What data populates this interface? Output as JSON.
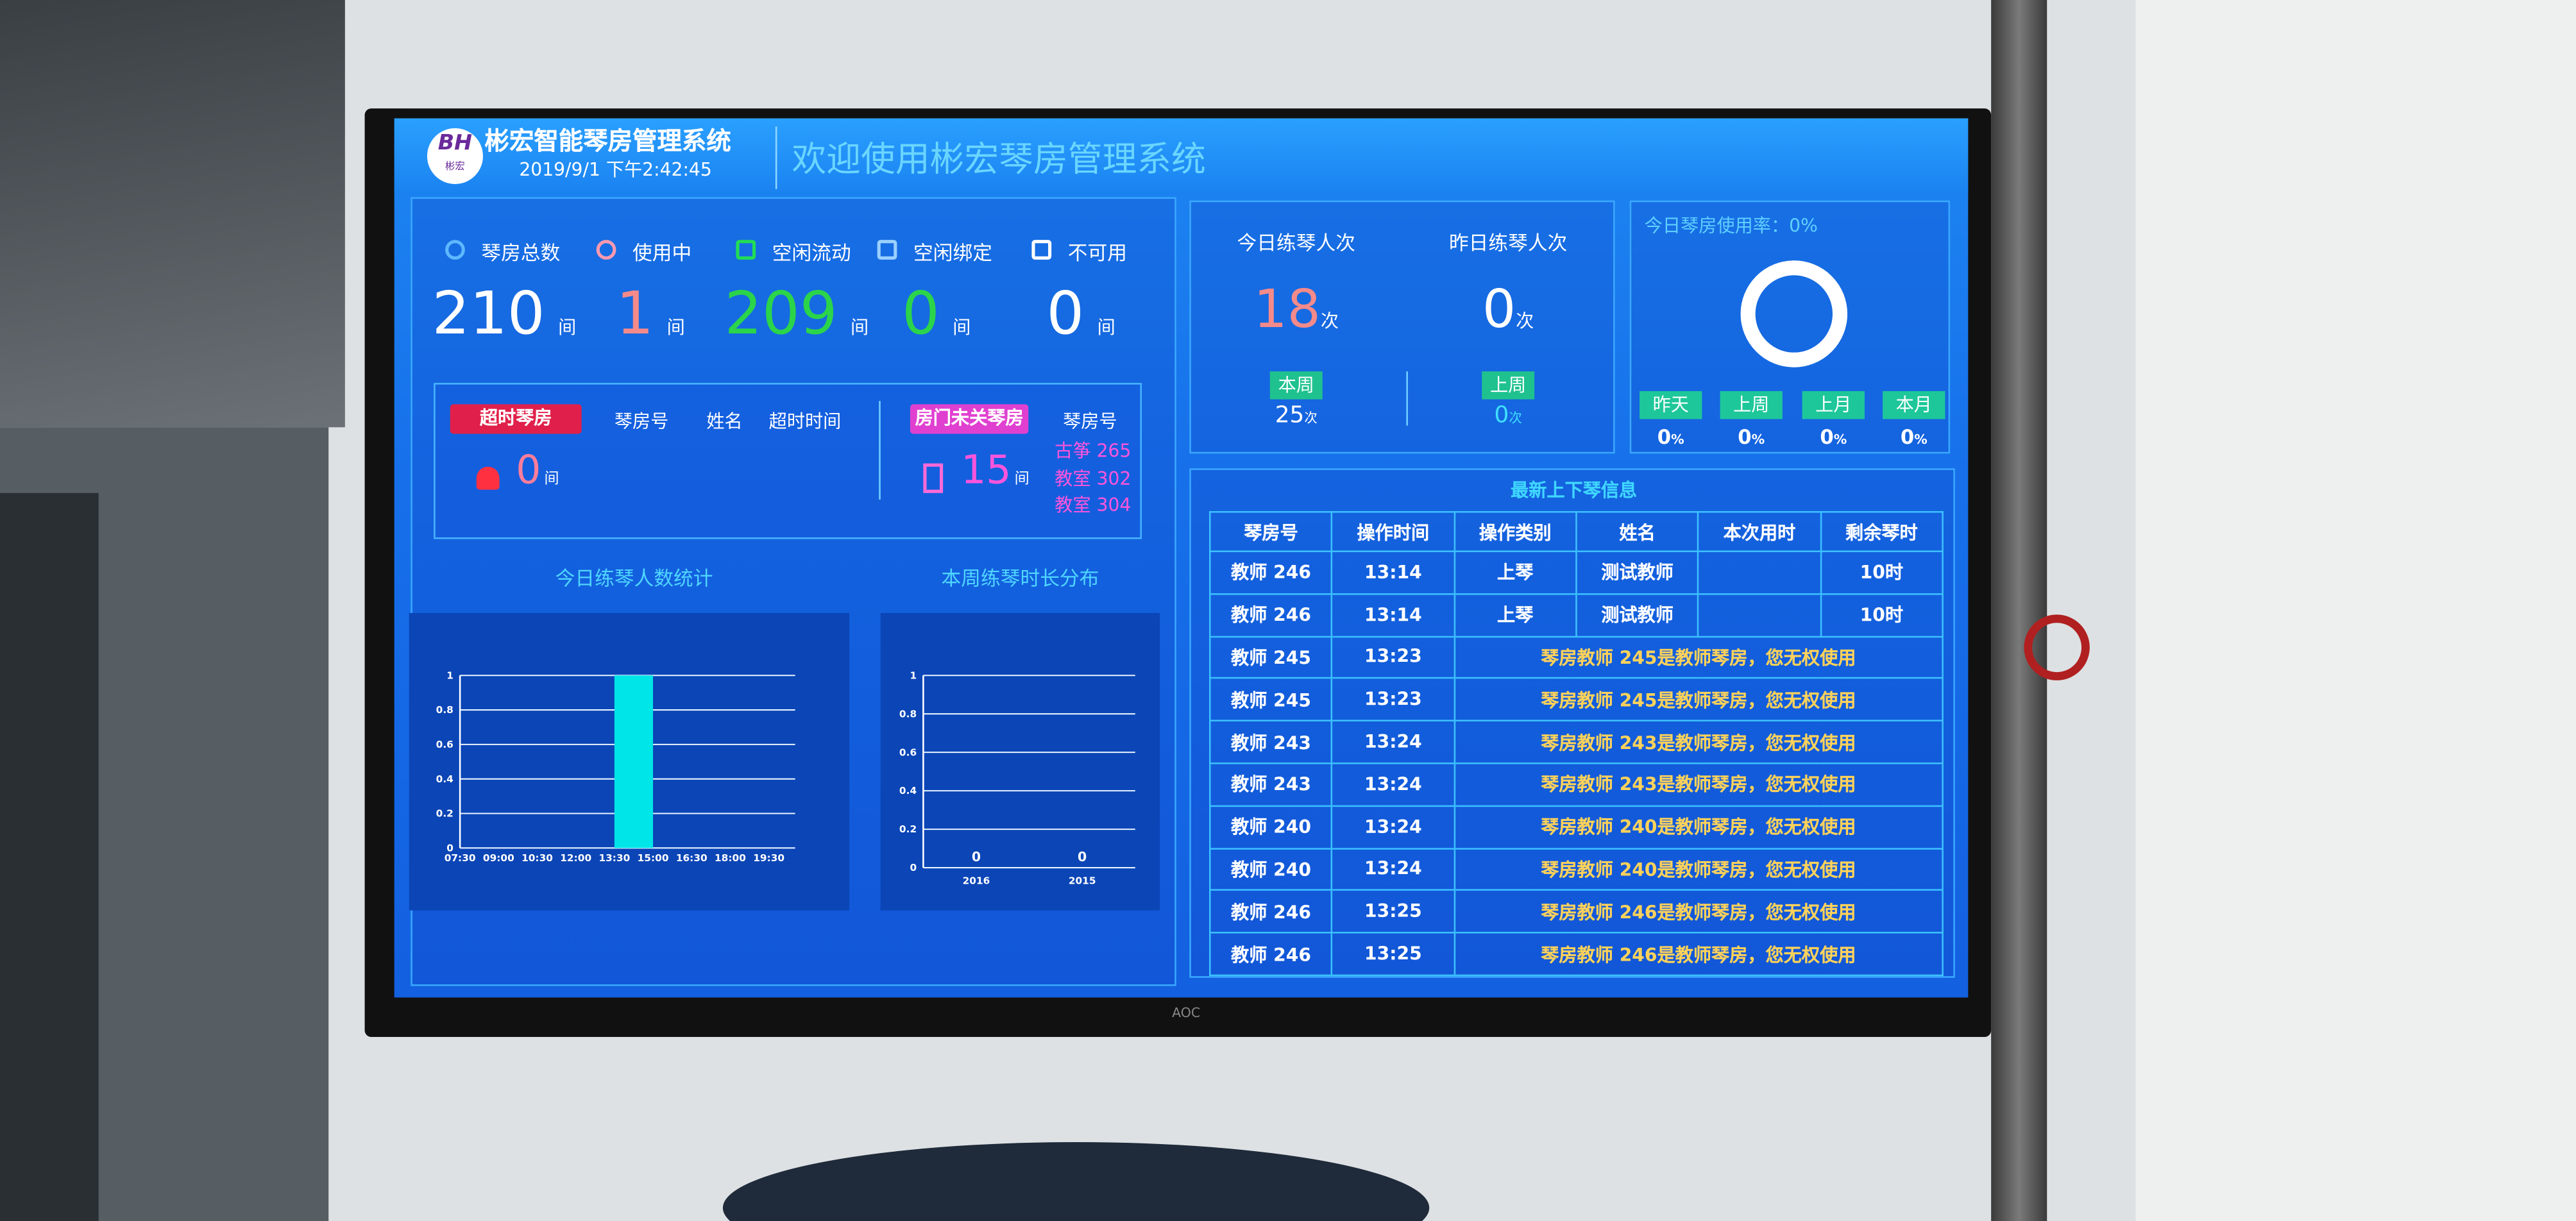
{
  "header": {
    "logo": "BH",
    "logo_caption": "彬宏",
    "system_name": "彬宏智能琴房管理系统",
    "datetime": "2019/9/1 下午2:42:45",
    "welcome": "欢迎使用彬宏琴房管理系统"
  },
  "room_stats": [
    {
      "label": "琴房总数",
      "value": 210,
      "unit": "间"
    },
    {
      "label": "使用中",
      "value": 1,
      "unit": "间"
    },
    {
      "label": "空闲流动",
      "value": 209,
      "unit": "间"
    },
    {
      "label": "空闲绑定",
      "value": 0,
      "unit": "间"
    },
    {
      "label": "不可用",
      "value": 0,
      "unit": "间"
    }
  ],
  "overtime": {
    "title": "超时琴房",
    "columns": [
      "琴房号",
      "姓名",
      "超时时间"
    ],
    "count": 0,
    "unit": "间"
  },
  "door_open": {
    "title": "房门未关琴房",
    "columns": [
      "琴房号"
    ],
    "count": 15,
    "unit": "间",
    "rooms": [
      "古筝 265",
      "教室 302",
      "教室 304"
    ]
  },
  "practice": [
    {
      "title": "今日练琴人次",
      "value": 18,
      "unit": "次",
      "period": "本周",
      "period_value": 25,
      "period_unit": "次"
    },
    {
      "title": "昨日练琴人次",
      "value": 0,
      "unit": "次",
      "period": "上周",
      "period_value": 0,
      "period_unit": "次"
    }
  ],
  "usage": {
    "title": "今日琴房使用率：0%",
    "periods": [
      {
        "label": "昨天",
        "value": 0,
        "unit": "%"
      },
      {
        "label": "上周",
        "value": 0,
        "unit": "%"
      },
      {
        "label": "上月",
        "value": 0,
        "unit": "%"
      },
      {
        "label": "本月",
        "value": 0,
        "unit": "%"
      }
    ]
  },
  "log": {
    "title": "最新上下琴信息",
    "columns": [
      "琴房号",
      "操作时间",
      "操作类别",
      "姓名",
      "本次用时",
      "剩余琴时"
    ],
    "rows": [
      {
        "room": "教师 246",
        "time": "13:14",
        "type": "上琴",
        "name": "测试教师",
        "remaining": "10时"
      },
      {
        "room": "教师 246",
        "time": "13:14",
        "type": "上琴",
        "name": "测试教师",
        "remaining": "10时"
      },
      {
        "room": "教师 245",
        "time": "13:23",
        "message": "琴房教师 245是教师琴房，您无权使用"
      },
      {
        "room": "教师 245",
        "time": "13:23",
        "message": "琴房教师 245是教师琴房，您无权使用"
      },
      {
        "room": "教师 243",
        "time": "13:24",
        "message": "琴房教师 243是教师琴房，您无权使用"
      },
      {
        "room": "教师 243",
        "time": "13:24",
        "message": "琴房教师 243是教师琴房，您无权使用"
      },
      {
        "room": "教师 240",
        "time": "13:24",
        "message": "琴房教师 240是教师琴房，您无权使用"
      },
      {
        "room": "教师 240",
        "time": "13:24",
        "message": "琴房教师 240是教师琴房，您无权使用"
      },
      {
        "room": "教师 246",
        "time": "13:25",
        "message": "琴房教师 246是教师琴房，您无权使用"
      },
      {
        "room": "教师 246",
        "time": "13:25",
        "message": "琴房教师 246是教师琴房，您无权使用"
      }
    ]
  },
  "brand": "AOC",
  "chart_data": [
    {
      "type": "histogram",
      "title": "今日练琴人数统计",
      "bins": [
        "07:30",
        "09:00",
        "10:30",
        "12:00",
        "13:30",
        "15:00",
        "16:30",
        "18:00",
        "19:30"
      ],
      "values": [
        0,
        0,
        0,
        0,
        1,
        0,
        0,
        0
      ],
      "color": "#00e5e8",
      "ylim": [
        0,
        1
      ],
      "yticks": [
        0,
        0.2,
        0.4,
        0.6,
        0.8,
        1
      ]
    },
    {
      "type": "bar",
      "title": "本周练琴时长分布",
      "categories": [
        "2016",
        "2015"
      ],
      "values": [
        0,
        0
      ],
      "color": "#00e5e8",
      "ylim": [
        0,
        1
      ],
      "yticks": [
        0,
        0.2,
        0.4,
        0.6,
        0.8,
        1
      ]
    }
  ]
}
